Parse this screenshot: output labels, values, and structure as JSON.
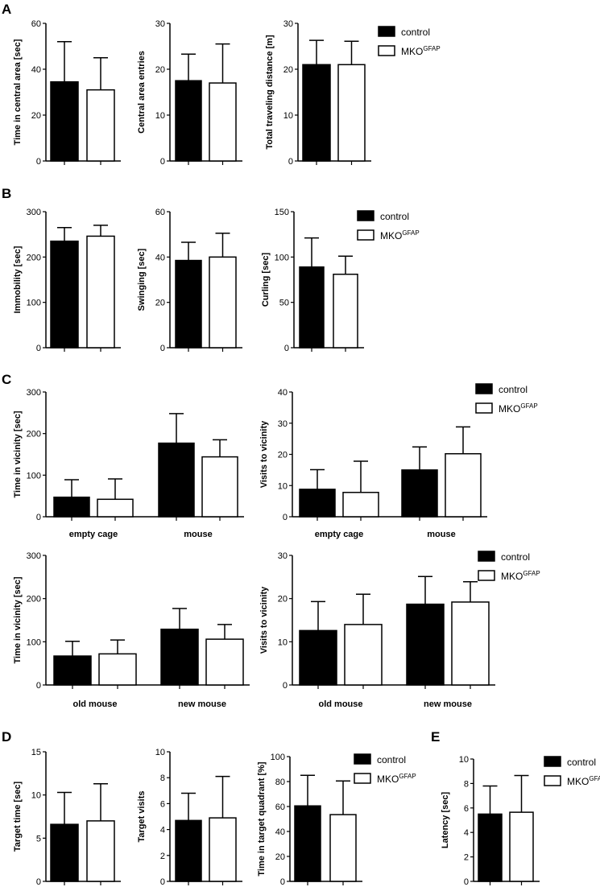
{
  "panel_labels": [
    "A",
    "B",
    "C",
    "D",
    "E"
  ],
  "legend": {
    "control": "control",
    "mko": "MKO",
    "mko_sup": "GFAP"
  },
  "colors": {
    "control": "#000000",
    "mko": "#ffffff",
    "axis": "#000000"
  },
  "chart_data": [
    {
      "id": "a1",
      "type": "bar",
      "series_keys": [
        "control",
        "mko"
      ],
      "ylabel": "Time in central area [sec]",
      "ylim": [
        0,
        60
      ],
      "yticks": [
        0,
        20,
        40,
        60
      ],
      "categories": [
        ""
      ],
      "values": [
        [
          34.5,
          31
        ]
      ],
      "errors": [
        [
          17.5,
          14
        ]
      ]
    },
    {
      "id": "a2",
      "type": "bar",
      "series_keys": [
        "control",
        "mko"
      ],
      "ylabel": "Central area entries",
      "ylim": [
        0,
        30
      ],
      "yticks": [
        0,
        10,
        20,
        30
      ],
      "categories": [
        ""
      ],
      "values": [
        [
          17.5,
          17
        ]
      ],
      "errors": [
        [
          5.8,
          8.5
        ]
      ]
    },
    {
      "id": "a3",
      "type": "bar",
      "series_keys": [
        "control",
        "mko"
      ],
      "ylabel": "Total traveling distance [m]",
      "ylim": [
        0,
        30
      ],
      "yticks": [
        0,
        10,
        20,
        30
      ],
      "categories": [
        ""
      ],
      "values": [
        [
          21,
          21
        ]
      ],
      "errors": [
        [
          5.3,
          5.1
        ]
      ]
    },
    {
      "id": "b1",
      "type": "bar",
      "series_keys": [
        "control",
        "mko"
      ],
      "ylabel": "Immobility [sec]",
      "ylim": [
        0,
        300
      ],
      "yticks": [
        0,
        100,
        200,
        300
      ],
      "categories": [
        ""
      ],
      "values": [
        [
          235,
          246
        ]
      ],
      "errors": [
        [
          30,
          24
        ]
      ]
    },
    {
      "id": "b2",
      "type": "bar",
      "series_keys": [
        "control",
        "mko"
      ],
      "ylabel": "Swinging [sec]",
      "ylim": [
        0,
        60
      ],
      "yticks": [
        0,
        20,
        40,
        60
      ],
      "categories": [
        ""
      ],
      "values": [
        [
          38.5,
          40
        ]
      ],
      "errors": [
        [
          8,
          10.5
        ]
      ]
    },
    {
      "id": "b3",
      "type": "bar",
      "series_keys": [
        "control",
        "mko"
      ],
      "ylabel": "Curling [sec]",
      "ylim": [
        0,
        150
      ],
      "yticks": [
        0,
        50,
        100,
        150
      ],
      "categories": [
        ""
      ],
      "values": [
        [
          89,
          81
        ]
      ],
      "errors": [
        [
          32,
          20
        ]
      ]
    },
    {
      "id": "c1",
      "type": "bar",
      "series_keys": [
        "control",
        "mko"
      ],
      "ylabel": "Time in vicinity [sec]",
      "ylim": [
        0,
        300
      ],
      "yticks": [
        0,
        100,
        200,
        300
      ],
      "categories": [
        "empty cage",
        "mouse"
      ],
      "values": [
        [
          47,
          42
        ],
        [
          177,
          144
        ]
      ],
      "errors": [
        [
          42,
          49
        ],
        [
          71,
          41
        ]
      ]
    },
    {
      "id": "c2",
      "type": "bar",
      "series_keys": [
        "control",
        "mko"
      ],
      "ylabel": "Visits to vicinity",
      "ylim": [
        0,
        40
      ],
      "yticks": [
        0,
        10,
        20,
        30,
        40
      ],
      "categories": [
        "empty cage",
        "mouse"
      ],
      "values": [
        [
          8.8,
          7.8
        ],
        [
          15,
          20.2
        ]
      ],
      "errors": [
        [
          6.3,
          10
        ],
        [
          7.4,
          8.6
        ]
      ]
    },
    {
      "id": "c3",
      "type": "bar",
      "series_keys": [
        "control",
        "mko"
      ],
      "ylabel": "Time in vicinity [sec]",
      "ylim": [
        0,
        300
      ],
      "yticks": [
        0,
        100,
        200,
        300
      ],
      "categories": [
        "old mouse",
        "new mouse"
      ],
      "values": [
        [
          67,
          72
        ],
        [
          129,
          106
        ]
      ],
      "errors": [
        [
          34,
          32
        ],
        [
          48,
          34
        ]
      ]
    },
    {
      "id": "c4",
      "type": "bar",
      "series_keys": [
        "control",
        "mko"
      ],
      "ylabel": "Visits to vicinity",
      "ylim": [
        0,
        30
      ],
      "yticks": [
        0,
        10,
        20,
        30
      ],
      "categories": [
        "old mouse",
        "new mouse"
      ],
      "values": [
        [
          12.6,
          14
        ],
        [
          18.7,
          19.2
        ]
      ],
      "errors": [
        [
          6.7,
          7
        ],
        [
          6.4,
          4.7
        ]
      ]
    },
    {
      "id": "d1",
      "type": "bar",
      "series_keys": [
        "control",
        "mko"
      ],
      "ylabel": "Target time [sec]",
      "ylim": [
        0,
        15
      ],
      "yticks": [
        0,
        5,
        10,
        15
      ],
      "categories": [
        ""
      ],
      "values": [
        [
          6.6,
          7
        ]
      ],
      "errors": [
        [
          3.7,
          4.3
        ]
      ]
    },
    {
      "id": "d2",
      "type": "bar",
      "series_keys": [
        "control",
        "mko"
      ],
      "ylabel": "Target visits",
      "ylim": [
        0,
        10
      ],
      "yticks": [
        0,
        2,
        4,
        6,
        8,
        10
      ],
      "categories": [
        ""
      ],
      "values": [
        [
          4.7,
          4.9
        ]
      ],
      "errors": [
        [
          2.1,
          3.2
        ]
      ]
    },
    {
      "id": "d3",
      "type": "bar",
      "series_keys": [
        "control",
        "mko"
      ],
      "ylabel": "Time in target quadrant  [%]",
      "ylim": [
        0,
        100
      ],
      "yticks": [
        0,
        20,
        40,
        60,
        80,
        100
      ],
      "categories": [
        ""
      ],
      "values": [
        [
          60.5,
          53.5
        ]
      ],
      "errors": [
        [
          24.5,
          27
        ]
      ]
    },
    {
      "id": "e1",
      "type": "bar",
      "series_keys": [
        "control",
        "mko"
      ],
      "ylabel": "Latency [sec]",
      "ylim": [
        0,
        10
      ],
      "yticks": [
        0,
        2,
        4,
        6,
        8,
        10
      ],
      "categories": [
        ""
      ],
      "values": [
        [
          5.5,
          5.65
        ]
      ],
      "errors": [
        [
          2.3,
          3
        ]
      ]
    }
  ]
}
